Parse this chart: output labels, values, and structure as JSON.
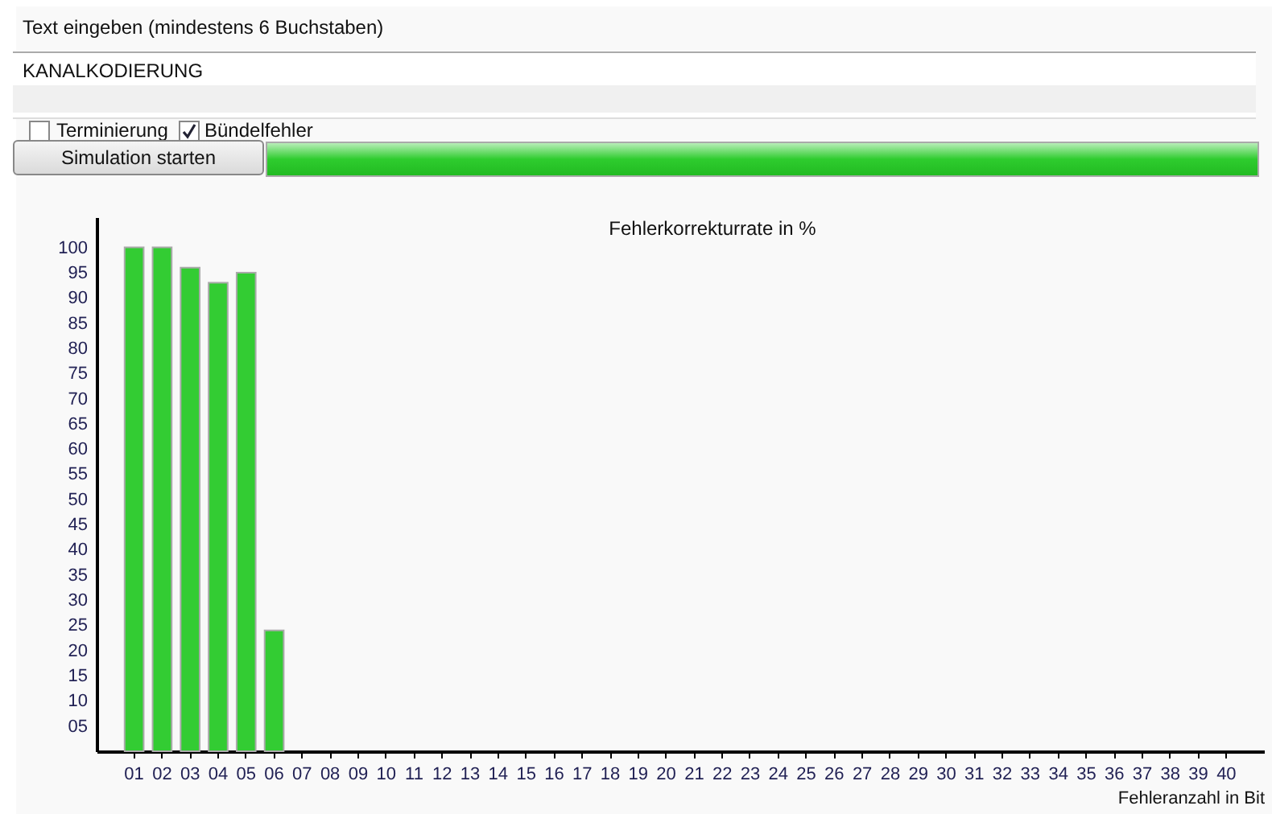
{
  "chart_data": {
    "type": "bar",
    "title": "Fehlerkorrekturrate in %",
    "xlabel": "Fehleranzahl in Bit",
    "annotations": [
      "Text eingeben (mindestens 6 Buchstaben)",
      "KANALKODIERUNG",
      "Terminierung",
      "Bündelfehler",
      "Simulation starten"
    ],
    "categories": [
      "01",
      "02",
      "03",
      "04",
      "05",
      "06",
      "07",
      "08",
      "09",
      "10",
      "11",
      "12",
      "13",
      "14",
      "15",
      "16",
      "17",
      "18",
      "19",
      "20",
      "21",
      "22",
      "23",
      "24",
      "25",
      "26",
      "27",
      "28",
      "29",
      "30",
      "31",
      "32",
      "33",
      "34",
      "35",
      "36",
      "37",
      "38",
      "39",
      "40"
    ],
    "values": [
      100,
      100,
      96,
      93,
      95,
      24,
      null,
      null,
      null,
      null,
      null,
      null,
      null,
      null,
      null,
      null,
      null,
      null,
      null,
      null,
      null,
      null,
      null,
      null,
      null,
      null,
      null,
      null,
      null,
      null,
      null,
      null,
      null,
      null,
      null,
      null,
      null,
      null,
      null,
      null
    ],
    "color": "#33cc33",
    "ylim": [
      0,
      106
    ],
    "yticks": [
      {
        "value": 5,
        "label": "05"
      },
      10,
      15,
      20,
      25,
      30,
      35,
      40,
      45,
      50,
      55,
      60,
      65,
      70,
      75,
      80,
      85,
      90,
      95,
      100
    ],
    "grid": false
  }
}
